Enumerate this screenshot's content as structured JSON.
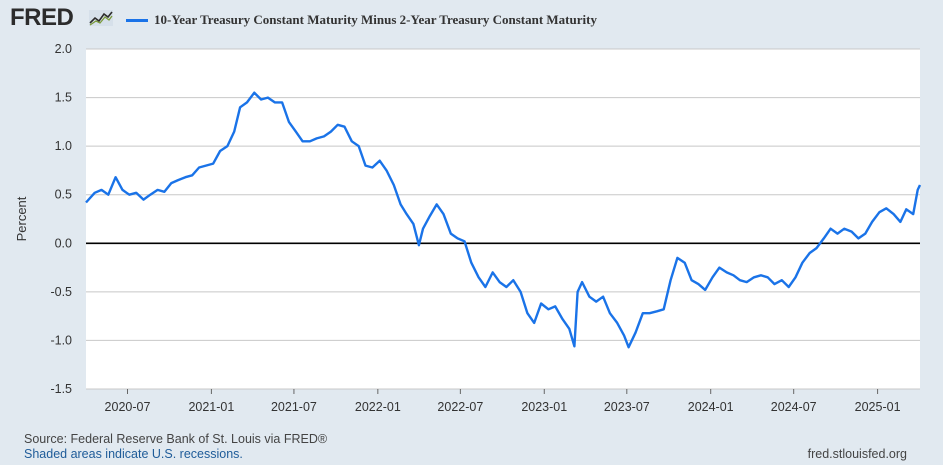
{
  "header": {
    "logo_text": "FRED",
    "logo_icon": "fred-chart-icon",
    "legend_label": "10-Year Treasury Constant Maturity Minus 2-Year Treasury Constant Maturity",
    "series_color": "#1a73e8"
  },
  "footer": {
    "source": "Source: Federal Reserve Bank of St. Louis via FRED®",
    "recessions": "Shaded areas indicate U.S. recessions.",
    "site": "fred.stlouisfed.org"
  },
  "chart_data": {
    "type": "line",
    "title": "",
    "xlabel": "",
    "ylabel": "Percent",
    "ylim": [
      -1.5,
      2.0
    ],
    "yticks": [
      -1.5,
      -1.0,
      -0.5,
      0.0,
      0.5,
      1.0,
      1.5,
      2.0
    ],
    "ytick_labels": [
      "-1.5",
      "-1.0",
      "-0.5",
      "0.0",
      "0.5",
      "1.0",
      "1.5",
      "2.0"
    ],
    "xlim": [
      "2020-04-01",
      "2025-04-04"
    ],
    "xtick_labels": [
      "2020-07",
      "2021-01",
      "2021-07",
      "2022-01",
      "2022-07",
      "2023-01",
      "2023-07",
      "2024-01",
      "2024-07",
      "2025-01"
    ],
    "xticks": [
      "2020-07-01",
      "2021-01-01",
      "2021-07-01",
      "2022-01-01",
      "2022-07-01",
      "2023-01-01",
      "2023-07-01",
      "2024-01-01",
      "2024-07-01",
      "2025-01-01"
    ],
    "grid": true,
    "zero_line": true,
    "series": [
      {
        "name": "10-Year Treasury Constant Maturity Minus 2-Year Treasury Constant Maturity",
        "color": "#1a73e8",
        "points": [
          [
            "2020-04-01",
            0.42
          ],
          [
            "2020-04-20",
            0.52
          ],
          [
            "2020-05-05",
            0.55
          ],
          [
            "2020-05-20",
            0.5
          ],
          [
            "2020-06-05",
            0.68
          ],
          [
            "2020-06-20",
            0.55
          ],
          [
            "2020-07-05",
            0.5
          ],
          [
            "2020-07-20",
            0.52
          ],
          [
            "2020-08-05",
            0.45
          ],
          [
            "2020-08-20",
            0.5
          ],
          [
            "2020-09-05",
            0.55
          ],
          [
            "2020-09-20",
            0.53
          ],
          [
            "2020-10-05",
            0.62
          ],
          [
            "2020-10-20",
            0.65
          ],
          [
            "2020-11-05",
            0.68
          ],
          [
            "2020-11-20",
            0.7
          ],
          [
            "2020-12-05",
            0.78
          ],
          [
            "2020-12-20",
            0.8
          ],
          [
            "2021-01-05",
            0.82
          ],
          [
            "2021-01-20",
            0.95
          ],
          [
            "2021-02-05",
            1.0
          ],
          [
            "2021-02-20",
            1.15
          ],
          [
            "2021-03-05",
            1.4
          ],
          [
            "2021-03-20",
            1.45
          ],
          [
            "2021-04-05",
            1.55
          ],
          [
            "2021-04-20",
            1.48
          ],
          [
            "2021-05-05",
            1.5
          ],
          [
            "2021-05-20",
            1.45
          ],
          [
            "2021-06-05",
            1.45
          ],
          [
            "2021-06-20",
            1.25
          ],
          [
            "2021-07-05",
            1.15
          ],
          [
            "2021-07-20",
            1.05
          ],
          [
            "2021-08-05",
            1.05
          ],
          [
            "2021-08-20",
            1.08
          ],
          [
            "2021-09-05",
            1.1
          ],
          [
            "2021-09-20",
            1.15
          ],
          [
            "2021-10-05",
            1.22
          ],
          [
            "2021-10-20",
            1.2
          ],
          [
            "2021-11-05",
            1.05
          ],
          [
            "2021-11-20",
            1.0
          ],
          [
            "2021-12-05",
            0.8
          ],
          [
            "2021-12-20",
            0.78
          ],
          [
            "2022-01-05",
            0.85
          ],
          [
            "2022-01-20",
            0.75
          ],
          [
            "2022-02-05",
            0.6
          ],
          [
            "2022-02-20",
            0.4
          ],
          [
            "2022-03-05",
            0.3
          ],
          [
            "2022-03-20",
            0.2
          ],
          [
            "2022-04-01",
            -0.02
          ],
          [
            "2022-04-10",
            0.15
          ],
          [
            "2022-04-25",
            0.28
          ],
          [
            "2022-05-10",
            0.4
          ],
          [
            "2022-05-25",
            0.3
          ],
          [
            "2022-06-10",
            0.1
          ],
          [
            "2022-06-25",
            0.05
          ],
          [
            "2022-07-10",
            0.02
          ],
          [
            "2022-07-25",
            -0.2
          ],
          [
            "2022-08-10",
            -0.35
          ],
          [
            "2022-08-25",
            -0.45
          ],
          [
            "2022-09-10",
            -0.3
          ],
          [
            "2022-09-25",
            -0.4
          ],
          [
            "2022-10-10",
            -0.45
          ],
          [
            "2022-10-25",
            -0.38
          ],
          [
            "2022-11-10",
            -0.5
          ],
          [
            "2022-11-25",
            -0.72
          ],
          [
            "2022-12-10",
            -0.82
          ],
          [
            "2022-12-25",
            -0.62
          ],
          [
            "2023-01-10",
            -0.68
          ],
          [
            "2023-01-25",
            -0.65
          ],
          [
            "2023-02-10",
            -0.78
          ],
          [
            "2023-02-25",
            -0.88
          ],
          [
            "2023-03-08",
            -1.06
          ],
          [
            "2023-03-15",
            -0.5
          ],
          [
            "2023-03-25",
            -0.4
          ],
          [
            "2023-04-10",
            -0.55
          ],
          [
            "2023-04-25",
            -0.6
          ],
          [
            "2023-05-10",
            -0.55
          ],
          [
            "2023-05-25",
            -0.72
          ],
          [
            "2023-06-10",
            -0.82
          ],
          [
            "2023-06-25",
            -0.95
          ],
          [
            "2023-07-05",
            -1.07
          ],
          [
            "2023-07-20",
            -0.92
          ],
          [
            "2023-08-05",
            -0.72
          ],
          [
            "2023-08-20",
            -0.72
          ],
          [
            "2023-09-05",
            -0.7
          ],
          [
            "2023-09-20",
            -0.68
          ],
          [
            "2023-10-05",
            -0.38
          ],
          [
            "2023-10-20",
            -0.15
          ],
          [
            "2023-11-05",
            -0.2
          ],
          [
            "2023-11-20",
            -0.38
          ],
          [
            "2023-12-05",
            -0.42
          ],
          [
            "2023-12-20",
            -0.48
          ],
          [
            "2024-01-05",
            -0.35
          ],
          [
            "2024-01-20",
            -0.25
          ],
          [
            "2024-02-05",
            -0.3
          ],
          [
            "2024-02-20",
            -0.33
          ],
          [
            "2024-03-05",
            -0.38
          ],
          [
            "2024-03-20",
            -0.4
          ],
          [
            "2024-04-05",
            -0.35
          ],
          [
            "2024-04-20",
            -0.33
          ],
          [
            "2024-05-05",
            -0.35
          ],
          [
            "2024-05-20",
            -0.42
          ],
          [
            "2024-06-05",
            -0.38
          ],
          [
            "2024-06-20",
            -0.45
          ],
          [
            "2024-07-05",
            -0.35
          ],
          [
            "2024-07-20",
            -0.2
          ],
          [
            "2024-08-05",
            -0.1
          ],
          [
            "2024-08-20",
            -0.05
          ],
          [
            "2024-09-05",
            0.05
          ],
          [
            "2024-09-20",
            0.15
          ],
          [
            "2024-10-05",
            0.1
          ],
          [
            "2024-10-20",
            0.15
          ],
          [
            "2024-11-05",
            0.12
          ],
          [
            "2024-11-20",
            0.05
          ],
          [
            "2024-12-05",
            0.1
          ],
          [
            "2024-12-20",
            0.22
          ],
          [
            "2025-01-05",
            0.32
          ],
          [
            "2025-01-20",
            0.36
          ],
          [
            "2025-02-05",
            0.3
          ],
          [
            "2025-02-20",
            0.22
          ],
          [
            "2025-03-05",
            0.35
          ],
          [
            "2025-03-20",
            0.3
          ],
          [
            "2025-03-30",
            0.55
          ],
          [
            "2025-04-04",
            0.6
          ]
        ]
      }
    ]
  }
}
